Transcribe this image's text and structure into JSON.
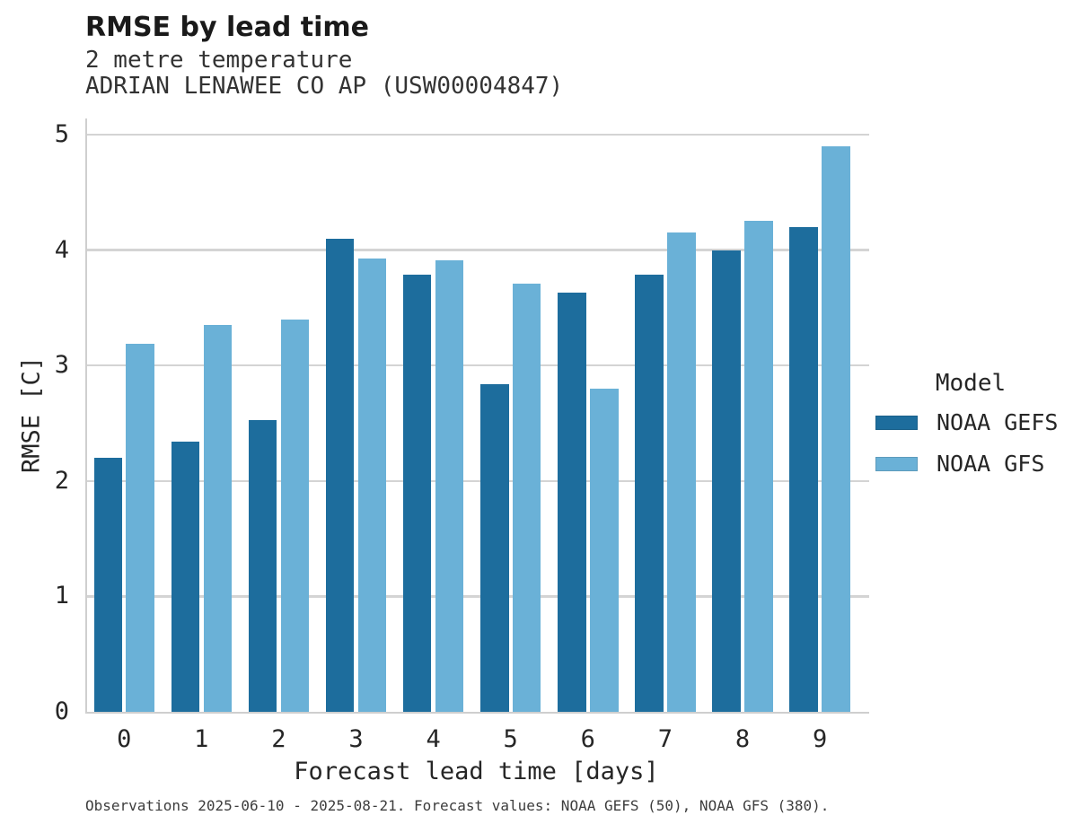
{
  "header": {
    "title": "RMSE by lead time",
    "subtitle": "2 metre temperature",
    "station": "ADRIAN LENAWEE CO AP (USW00004847)"
  },
  "footer": {
    "note": "Observations 2025-06-10 - 2025-08-21. Forecast values: NOAA GEFS (50), NOAA GFS (380)."
  },
  "legend": {
    "title": "Model",
    "entries": [
      {
        "label": "NOAA GEFS",
        "color": "#1d6d9d"
      },
      {
        "label": "NOAA GFS",
        "color": "#6ab1d7"
      }
    ]
  },
  "chart_data": {
    "type": "bar",
    "title": "RMSE by lead time",
    "subtitle": "2 metre temperature",
    "station": "ADRIAN LENAWEE CO AP (USW00004847)",
    "xlabel": "Forecast lead time [days]",
    "ylabel": "RMSE [C]",
    "categories": [
      "0",
      "1",
      "2",
      "3",
      "4",
      "5",
      "6",
      "7",
      "8",
      "9"
    ],
    "series": [
      {
        "name": "NOAA GEFS",
        "color": "#1d6d9d",
        "values": [
          2.2,
          2.34,
          2.53,
          4.1,
          3.79,
          2.84,
          3.63,
          3.79,
          4.0,
          4.2
        ]
      },
      {
        "name": "NOAA GFS",
        "color": "#6ab1d7",
        "values": [
          3.19,
          3.35,
          3.4,
          3.93,
          3.91,
          3.71,
          2.8,
          4.15,
          4.25,
          4.9
        ]
      }
    ],
    "ylim": [
      0,
      5
    ],
    "yticks": [
      0,
      1,
      2,
      3,
      4,
      5
    ],
    "grid": true,
    "legend_position": "right",
    "gridline_color": "#d4d4d4",
    "background": "#ffffff"
  }
}
